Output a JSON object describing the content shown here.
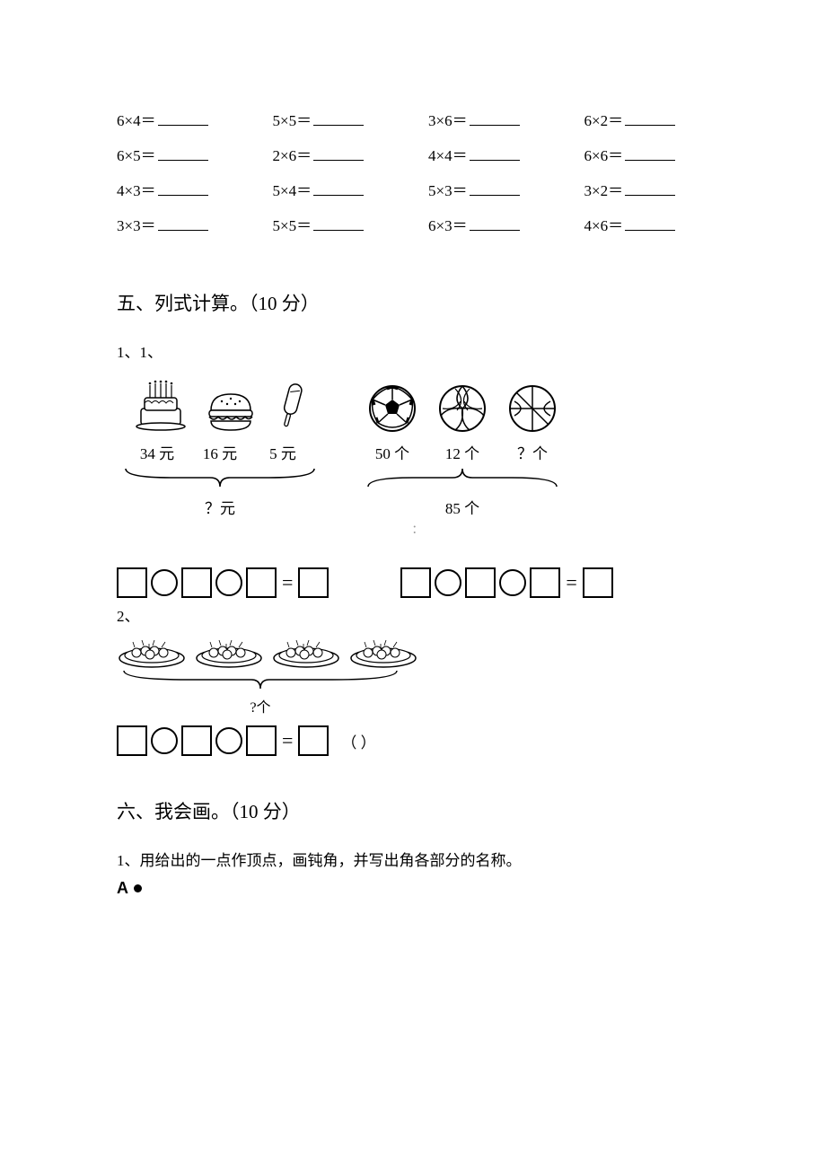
{
  "equations": {
    "rows": [
      [
        "6×4＝",
        "5×5＝",
        "3×6＝",
        "6×2＝"
      ],
      [
        "6×5＝",
        "2×6＝",
        "4×4＝",
        "6×6＝"
      ],
      [
        "4×3＝",
        "5×4＝",
        "5×3＝",
        "3×2＝"
      ],
      [
        "3×3＝",
        "5×5＝",
        "6×3＝",
        "4×6＝"
      ]
    ]
  },
  "section5": {
    "title": "五、列式计算。（10 分）",
    "sub1": "1、1、",
    "left": {
      "labels": [
        "34 元",
        "16 元",
        "5 元"
      ],
      "total": "？元"
    },
    "right": {
      "labels": [
        "50 个",
        "12 个",
        "？个"
      ],
      "total": "85 个"
    },
    "sub2": "2、",
    "plates_total": "?个",
    "paren": "（       ）"
  },
  "section6": {
    "title": "六、我会画。（10 分）",
    "q1": "1、用给出的一点作顶点，画钝角，并写出角各部分的名称。",
    "point_label": "A"
  },
  "midmark": "："
}
